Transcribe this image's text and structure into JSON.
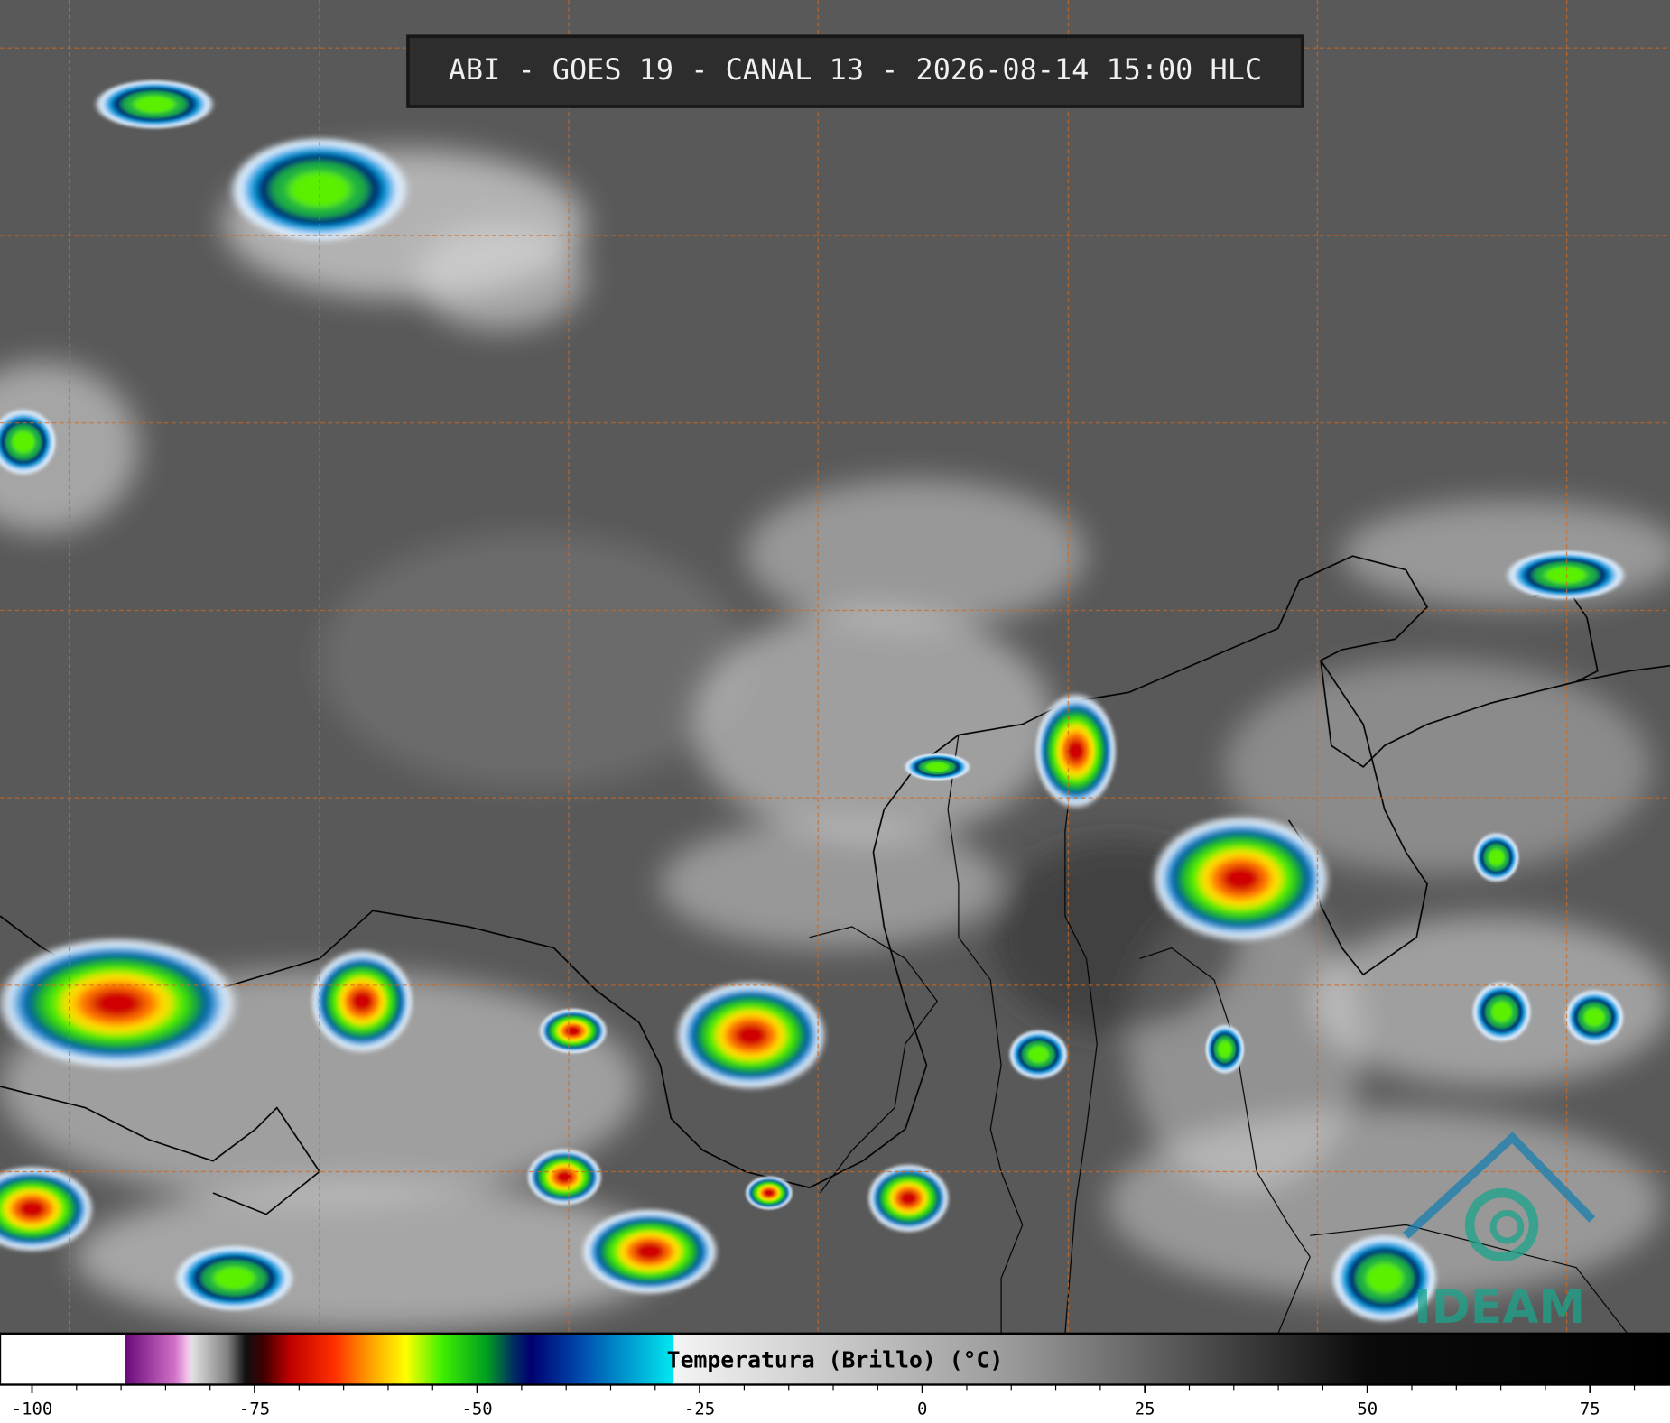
{
  "header": {
    "title": "ABI - GOES 19 - CANAL 13 - 2026-08-14 15:00 HLC"
  },
  "colorbar": {
    "label": "Temperatura (Brillo) (°C)",
    "range": [
      -103.6,
      84
    ],
    "ticks": [
      -100,
      -75,
      -50,
      -25,
      0,
      25,
      50,
      75
    ],
    "minor_ticks": [
      -95,
      -90,
      -85,
      -80,
      -70,
      -65,
      -60,
      -55,
      -45,
      -40,
      -35,
      -30,
      -20,
      -15,
      -10,
      -5,
      5,
      10,
      15,
      20,
      30,
      35,
      40,
      45,
      55,
      60,
      65,
      70,
      80
    ],
    "colormap": [
      {
        "value": -103.6,
        "color": "#ffffff"
      },
      {
        "value": -89.6,
        "color": "#ffffff"
      },
      {
        "value": -89.5,
        "color": "#6a0a7a"
      },
      {
        "value": -84,
        "color": "#d070c8"
      },
      {
        "value": -82.5,
        "color": "#f4c4ec"
      },
      {
        "value": -82,
        "color": "#e0e0e0"
      },
      {
        "value": -78,
        "color": "#808080"
      },
      {
        "value": -76,
        "color": "#101010"
      },
      {
        "value": -74,
        "color": "#400000"
      },
      {
        "value": -71,
        "color": "#c00000"
      },
      {
        "value": -66,
        "color": "#ff3000"
      },
      {
        "value": -62,
        "color": "#ffa000"
      },
      {
        "value": -58,
        "color": "#ffff00"
      },
      {
        "value": -54,
        "color": "#40f000"
      },
      {
        "value": -49,
        "color": "#00a020"
      },
      {
        "value": -46,
        "color": "#003060"
      },
      {
        "value": -44,
        "color": "#000070"
      },
      {
        "value": -38,
        "color": "#0050b0"
      },
      {
        "value": -28,
        "color": "#00e8f0"
      },
      {
        "value": -27.9,
        "color": "#f4f4f4"
      },
      {
        "value": 10,
        "color": "#9a9a9a"
      },
      {
        "value": 50,
        "color": "#0a0a0a"
      },
      {
        "value": 84,
        "color": "#000000"
      }
    ]
  },
  "logo": {
    "text": "IDEAM"
  }
}
